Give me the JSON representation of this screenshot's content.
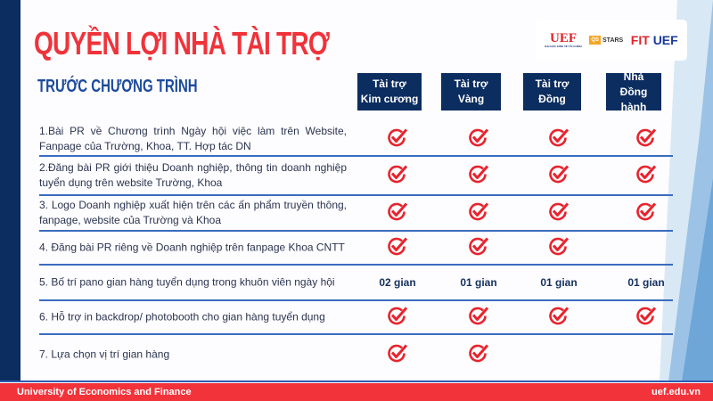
{
  "title": "QUYỀN LỢI NHÀ TÀI TRỢ",
  "subtitle": "TRƯỚC CHƯƠNG TRÌNH",
  "logos": {
    "uef": "UEF",
    "uef_sub": "ĐẠI HỌC KINH TẾ TÀI CHÍNH",
    "qs": "QS",
    "stars": "STARS",
    "fit": "FIT",
    "fit_uef": "UEF"
  },
  "columns": [
    "Tài trợ\nKim cương",
    "Tài trợ\nVàng",
    "Tài trợ\nĐồng",
    "Nhà\nĐồng hành"
  ],
  "rows": [
    {
      "label": "1.Bài PR về Chương trình Ngày hội việc làm trên Website, Fanpage của Trường, Khoa, TT. Hợp tác DN",
      "cells": [
        "check",
        "check",
        "check",
        "check"
      ]
    },
    {
      "label": "2.Đăng bài PR giới thiệu Doanh nghiệp, thông tin doanh nghiệp tuyển dụng trên website Trường, Khoa",
      "cells": [
        "check",
        "check",
        "check",
        "check"
      ]
    },
    {
      "label": "3. Logo Doanh nghiệp xuất hiện trên các ấn phẩm truyền thông, fanpage, website của Trường và Khoa",
      "cells": [
        "check",
        "check",
        "check",
        "check"
      ]
    },
    {
      "label": "4. Đăng bài PR riêng về Doanh nghiệp trên fanpage Khoa CNTT",
      "cells": [
        "check",
        "check",
        "check",
        ""
      ]
    },
    {
      "label": "5. Bố trí pano gian hàng tuyển dụng trong khuôn viên ngày hội",
      "cells": [
        "02 gian",
        "01 gian",
        "01 gian",
        "01 gian"
      ]
    },
    {
      "label": "6. Hỗ trợ in backdrop/ photobooth cho gian hàng tuyển dụng",
      "cells": [
        "check",
        "check",
        "check",
        "check"
      ]
    },
    {
      "label": "7. Lựa chọn vị trí gian hàng",
      "cells": [
        "check",
        "check",
        "",
        ""
      ]
    }
  ],
  "footer": {
    "left": "University of Economics and Finance",
    "right": "uef.edu.vn"
  },
  "colors": {
    "accent_red": "#f0333a",
    "navy": "#0c2d5f",
    "blue": "#1b4a9c"
  }
}
